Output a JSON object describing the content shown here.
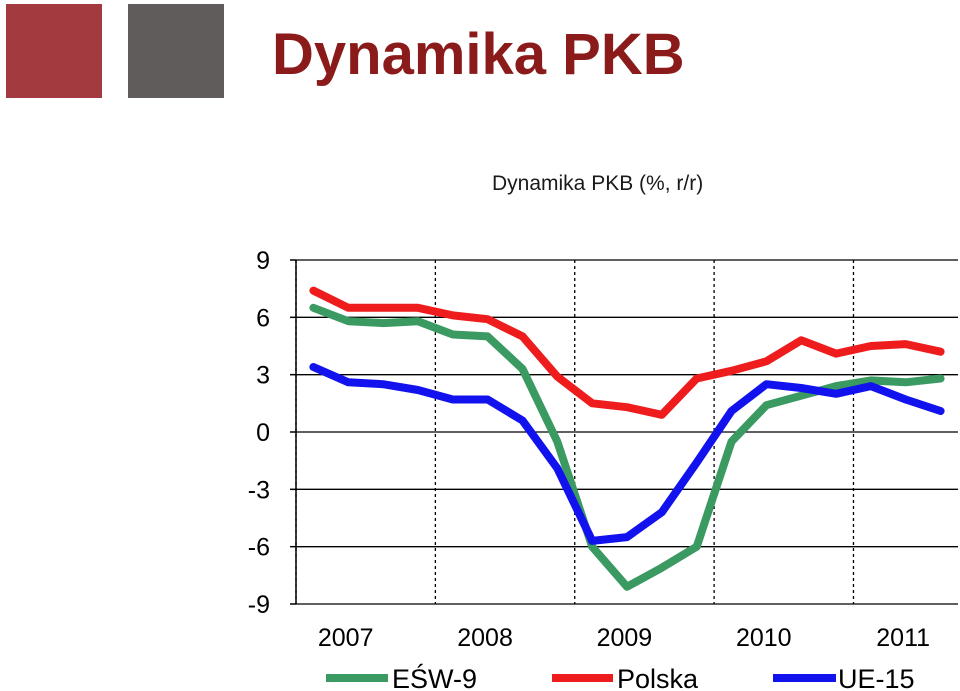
{
  "slide": {
    "title": "Dynamika PKB",
    "square_colors": [
      "#A33A3F",
      "#605C5B"
    ]
  },
  "chart_data": {
    "type": "line",
    "title": "Dynamika PKB (%, r/r)",
    "xlabel": "",
    "ylabel": "",
    "ylim": [
      -9,
      9
    ],
    "yticks": [
      9,
      6,
      3,
      0,
      -3,
      -6,
      -9
    ],
    "xlim": [
      2007.0,
      2011.75
    ],
    "xticks": [
      2007,
      2008,
      2009,
      2010,
      2011
    ],
    "grid": true,
    "legend_position": "bottom",
    "series": [
      {
        "name": "EŚW-9",
        "color": "#3A9A62",
        "x": [
          2007.125,
          2007.375,
          2007.625,
          2007.875,
          2008.125,
          2008.375,
          2008.625,
          2008.875,
          2009.125,
          2009.375,
          2009.625,
          2009.875,
          2010.125,
          2010.375,
          2010.625,
          2010.875,
          2011.125,
          2011.375,
          2011.625
        ],
        "values": [
          6.5,
          5.8,
          5.7,
          5.8,
          5.1,
          5.0,
          3.3,
          -0.5,
          -6.0,
          -8.1,
          -7.1,
          -6.0,
          -0.5,
          1.4,
          1.9,
          2.4,
          2.7,
          2.6,
          2.8
        ]
      },
      {
        "name": "Polska",
        "color": "#EE1C1C",
        "x": [
          2007.125,
          2007.375,
          2007.625,
          2007.875,
          2008.125,
          2008.375,
          2008.625,
          2008.875,
          2009.125,
          2009.375,
          2009.625,
          2009.875,
          2010.125,
          2010.375,
          2010.625,
          2010.875,
          2011.125,
          2011.375,
          2011.625
        ],
        "values": [
          7.4,
          6.5,
          6.5,
          6.5,
          6.1,
          5.9,
          5.0,
          2.9,
          1.5,
          1.3,
          0.9,
          2.8,
          3.2,
          3.7,
          4.8,
          4.1,
          4.5,
          4.6,
          4.2
        ]
      },
      {
        "name": "UE-15",
        "color": "#1212EE",
        "x": [
          2007.125,
          2007.375,
          2007.625,
          2007.875,
          2008.125,
          2008.375,
          2008.625,
          2008.875,
          2009.125,
          2009.375,
          2009.625,
          2009.875,
          2010.125,
          2010.375,
          2010.625,
          2010.875,
          2011.125,
          2011.375,
          2011.625
        ],
        "values": [
          3.4,
          2.6,
          2.5,
          2.2,
          1.7,
          1.7,
          0.6,
          -1.9,
          -5.7,
          -5.5,
          -4.2,
          -1.6,
          1.1,
          2.5,
          2.3,
          2.0,
          2.4,
          1.7,
          1.1
        ]
      }
    ]
  }
}
